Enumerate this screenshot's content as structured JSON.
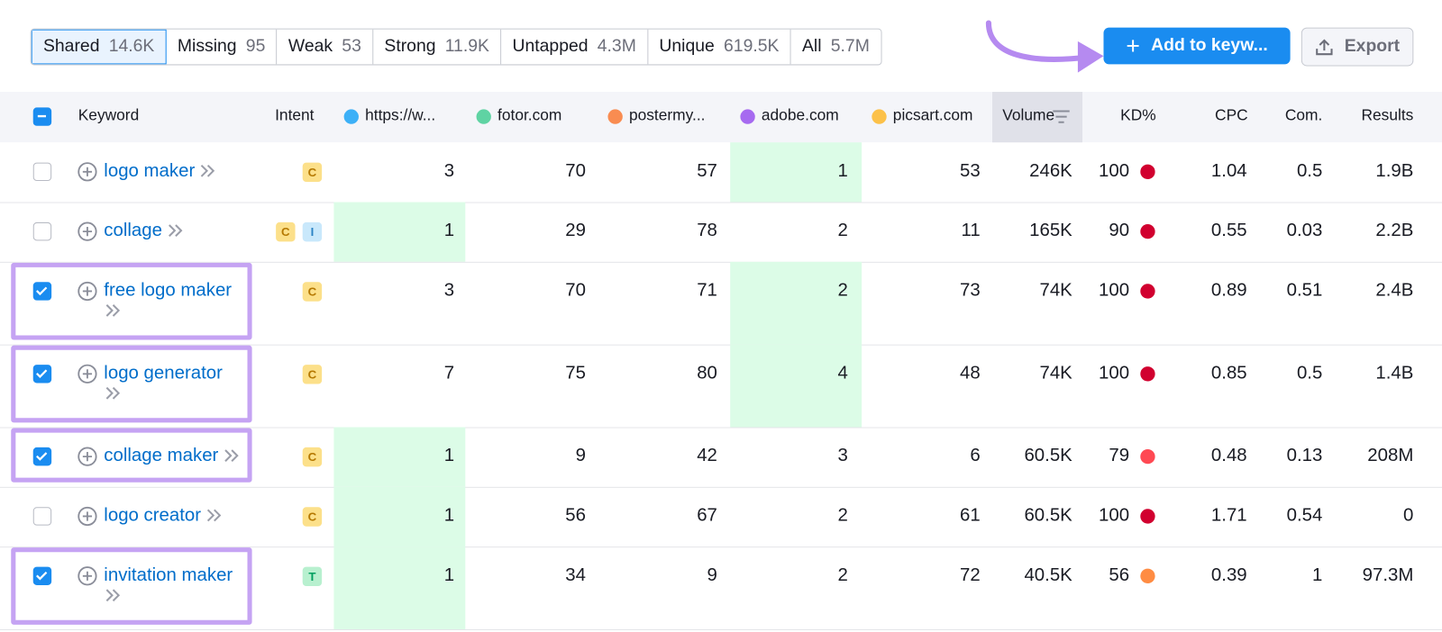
{
  "tabs": [
    {
      "label": "Shared",
      "count": "14.6K",
      "active": true
    },
    {
      "label": "Missing",
      "count": 95
    },
    {
      "label": "Weak",
      "count": 53
    },
    {
      "label": "Strong",
      "count": "11.9K"
    },
    {
      "label": "Untapped",
      "count": "4.3M"
    },
    {
      "label": "Unique",
      "count": "619.5K"
    },
    {
      "label": "All",
      "count": "5.7M"
    }
  ],
  "buttons": {
    "add": "Add to keyw...",
    "export": "Export"
  },
  "table": {
    "columns": {
      "keyword": "Keyword",
      "intent": "Intent",
      "volume": "Volume",
      "kd": "KD%",
      "cpc": "CPC",
      "com": "Com.",
      "results": "Results"
    },
    "competitors": [
      {
        "name": "https://w...",
        "color": "#3cb0f7"
      },
      {
        "name": "fotor.com",
        "color": "#5fd3a3"
      },
      {
        "name": "postermy...",
        "color": "#f98c51"
      },
      {
        "name": "adobe.com",
        "color": "#a66af0"
      },
      {
        "name": "picsart.com",
        "color": "#fcc149"
      }
    ],
    "rows": [
      {
        "keyword": "logo maker",
        "intent": [
          "C"
        ],
        "positions": [
          3,
          70,
          57,
          1,
          53
        ],
        "volume": "246K",
        "kd": 100,
        "kd_color": "#d1002f",
        "cpc": 1.04,
        "com": 0.5,
        "results": "1.9B",
        "checked": false,
        "annotated": false
      },
      {
        "keyword": "collage",
        "intent": [
          "C",
          "I"
        ],
        "positions": [
          1,
          29,
          78,
          2,
          11
        ],
        "volume": "165K",
        "kd": 90,
        "kd_color": "#d1002f",
        "cpc": 0.55,
        "com": 0.03,
        "results": "2.2B",
        "checked": false,
        "annotated": false
      },
      {
        "keyword": "free logo maker",
        "intent": [
          "C"
        ],
        "positions": [
          3,
          70,
          71,
          2,
          73
        ],
        "volume": "74K",
        "kd": 100,
        "kd_color": "#d1002f",
        "cpc": 0.89,
        "com": 0.51,
        "results": "2.4B",
        "checked": true,
        "annotated": true
      },
      {
        "keyword": "logo generator",
        "intent": [
          "C"
        ],
        "positions": [
          7,
          75,
          80,
          4,
          48
        ],
        "volume": "74K",
        "kd": 100,
        "kd_color": "#d1002f",
        "cpc": 0.85,
        "com": 0.5,
        "results": "1.4B",
        "checked": true,
        "annotated": true
      },
      {
        "keyword": "collage maker",
        "intent": [
          "C"
        ],
        "positions": [
          1,
          9,
          42,
          3,
          6
        ],
        "volume": "60.5K",
        "kd": 79,
        "kd_color": "#ff4953",
        "cpc": 0.48,
        "com": 0.13,
        "results": "208M",
        "checked": true,
        "annotated": true
      },
      {
        "keyword": "logo creator",
        "intent": [
          "C"
        ],
        "positions": [
          1,
          56,
          67,
          2,
          61
        ],
        "volume": "60.5K",
        "kd": 100,
        "kd_color": "#d1002f",
        "cpc": 1.71,
        "com": 0.54,
        "results": 0,
        "checked": false,
        "annotated": false
      },
      {
        "keyword": "invitation maker",
        "intent": [
          "T"
        ],
        "positions": [
          1,
          34,
          9,
          2,
          72
        ],
        "volume": "40.5K",
        "kd": 56,
        "kd_color": "#ff8c43",
        "cpc": 0.39,
        "com": 1,
        "results": "97.3M",
        "checked": true,
        "annotated": true
      }
    ]
  }
}
